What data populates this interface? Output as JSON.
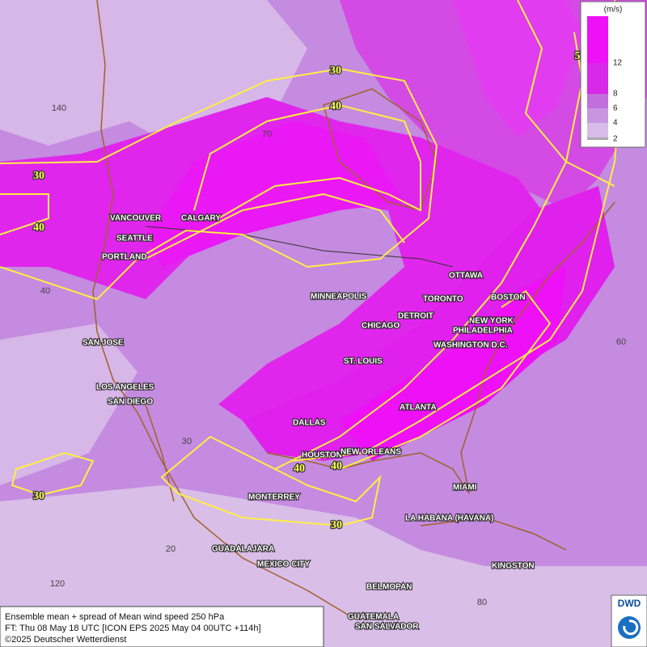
{
  "legend": {
    "unit": "(m/s)",
    "levels": [
      "2",
      "4",
      "6",
      "8",
      "12"
    ]
  },
  "contour_labels": [
    "30",
    "40",
    "30",
    "40",
    "40",
    "40",
    "30",
    "30",
    "5"
  ],
  "grid_labels": [
    "70",
    "140",
    "40",
    "60",
    "30",
    "20",
    "120",
    "80"
  ],
  "cities": [
    "VANCOUVER",
    "CALGARY",
    "SEATTLE",
    "PORTLAND",
    "MINNEAPOLIS",
    "OTTAWA",
    "TORONTO",
    "BOSTON",
    "DETROIT",
    "CHICAGO",
    "NEW YORK",
    "PHILADELPHIA",
    "WASHINGTON D.C.",
    "SAN JOSE",
    "ST. LOUIS",
    "LOS ANGELES",
    "SAN DIEGO",
    "ATLANTA",
    "DALLAS",
    "HOUSTON",
    "NEW ORLEANS",
    "MIAMI",
    "MONTERREY",
    "LA HABANA (HAVANA)",
    "GUADALAJARA",
    "MEXICO CITY",
    "KINGSTON",
    "BELMOPAN",
    "GUATEMALA",
    "SAN SALVADOR"
  ],
  "footer": {
    "line1": "Ensemble mean + spread of Mean wind speed 250 hPa",
    "line2": "FT: Thu 08 May 18 UTC [ICON EPS 2025 May 04 00UTC +114h]",
    "line3": "©2025 Deutscher Wetterdienst"
  },
  "logo": "DWD"
}
